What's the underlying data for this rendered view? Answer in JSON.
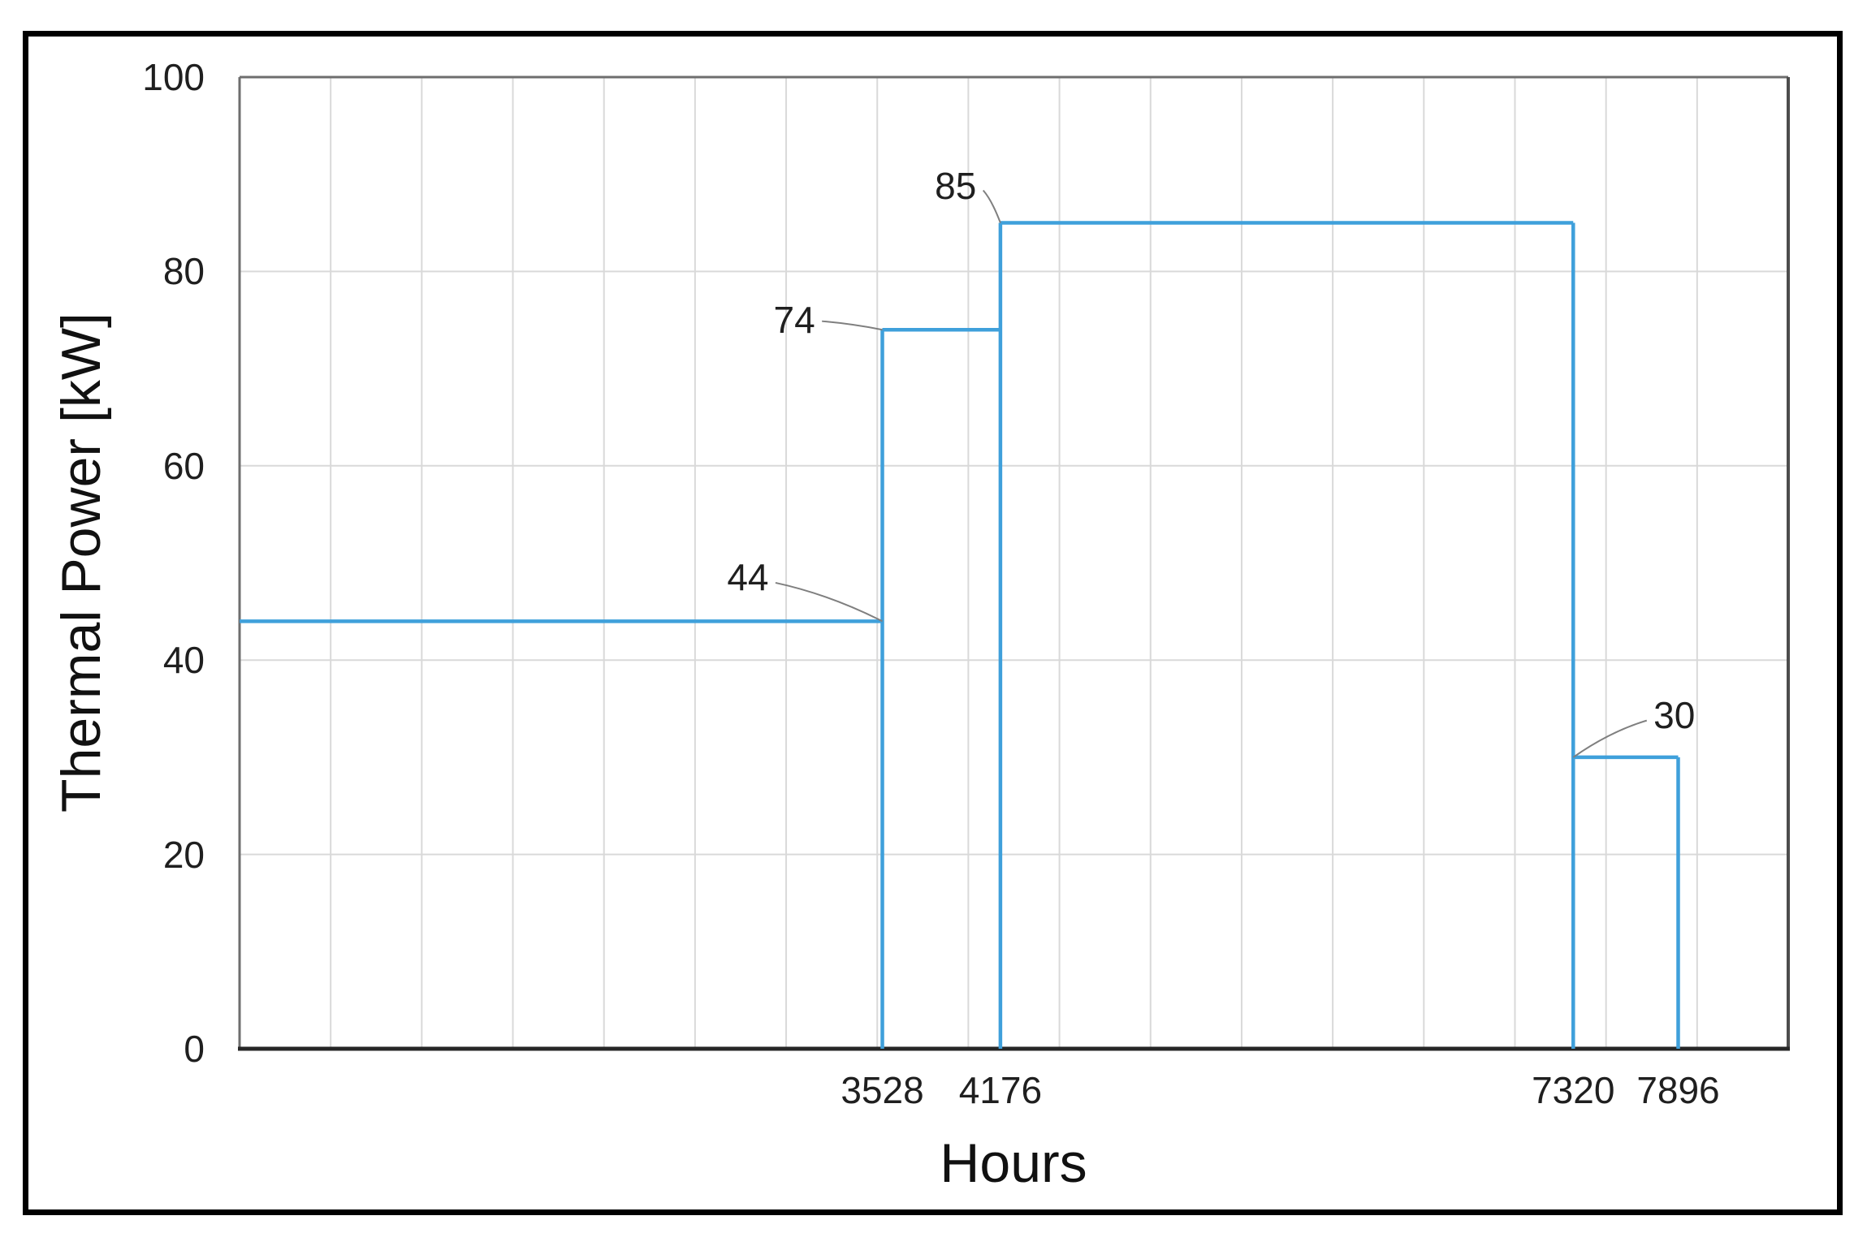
{
  "chart_data": {
    "type": "line",
    "subtype": "step",
    "title": "",
    "xlabel": "Hours",
    "ylabel": "Thermal Power [kW]",
    "x_unit": "hours",
    "y_unit": "kW",
    "xlim": [
      0,
      8500
    ],
    "ylim": [
      0,
      100
    ],
    "grid": true,
    "x_gridline_step_hours": 500,
    "y_gridline_step_kw": 20,
    "y_ticks": [
      0,
      20,
      40,
      60,
      80,
      100
    ],
    "x_ticks": [
      3528,
      4176,
      7320,
      7896
    ],
    "legend": "none",
    "steps": [
      {
        "from_hour": 0,
        "to_hour": 3528,
        "power_kw": 44
      },
      {
        "from_hour": 3528,
        "to_hour": 4176,
        "power_kw": 74
      },
      {
        "from_hour": 4176,
        "to_hour": 7320,
        "power_kw": 85
      },
      {
        "from_hour": 7320,
        "to_hour": 7896,
        "power_kw": 30
      }
    ],
    "annotations": [
      {
        "label": "44",
        "anchor_hour": 3528,
        "anchor_kw": 44,
        "label_hour": 2790,
        "label_kw": 48.5
      },
      {
        "label": "74",
        "anchor_hour": 3528,
        "anchor_kw": 74,
        "label_hour": 3045,
        "label_kw": 75.0
      },
      {
        "label": "85",
        "anchor_hour": 4176,
        "anchor_kw": 85,
        "label_hour": 3930,
        "label_kw": 88.8
      },
      {
        "label": "30",
        "anchor_hour": 7320,
        "anchor_kw": 30,
        "label_hour": 7875,
        "label_kw": 34.3
      }
    ],
    "colors": {
      "series_line": "#3FA0DB",
      "gridline": "#D9D9D9",
      "axis_top_left": "#6E6E6E",
      "axis_right": "#4D4D4D",
      "axis_bottom": "#262626",
      "leader_line": "#7F7F7F",
      "text": "#1F1F1F",
      "outer_border": "#000000"
    }
  }
}
